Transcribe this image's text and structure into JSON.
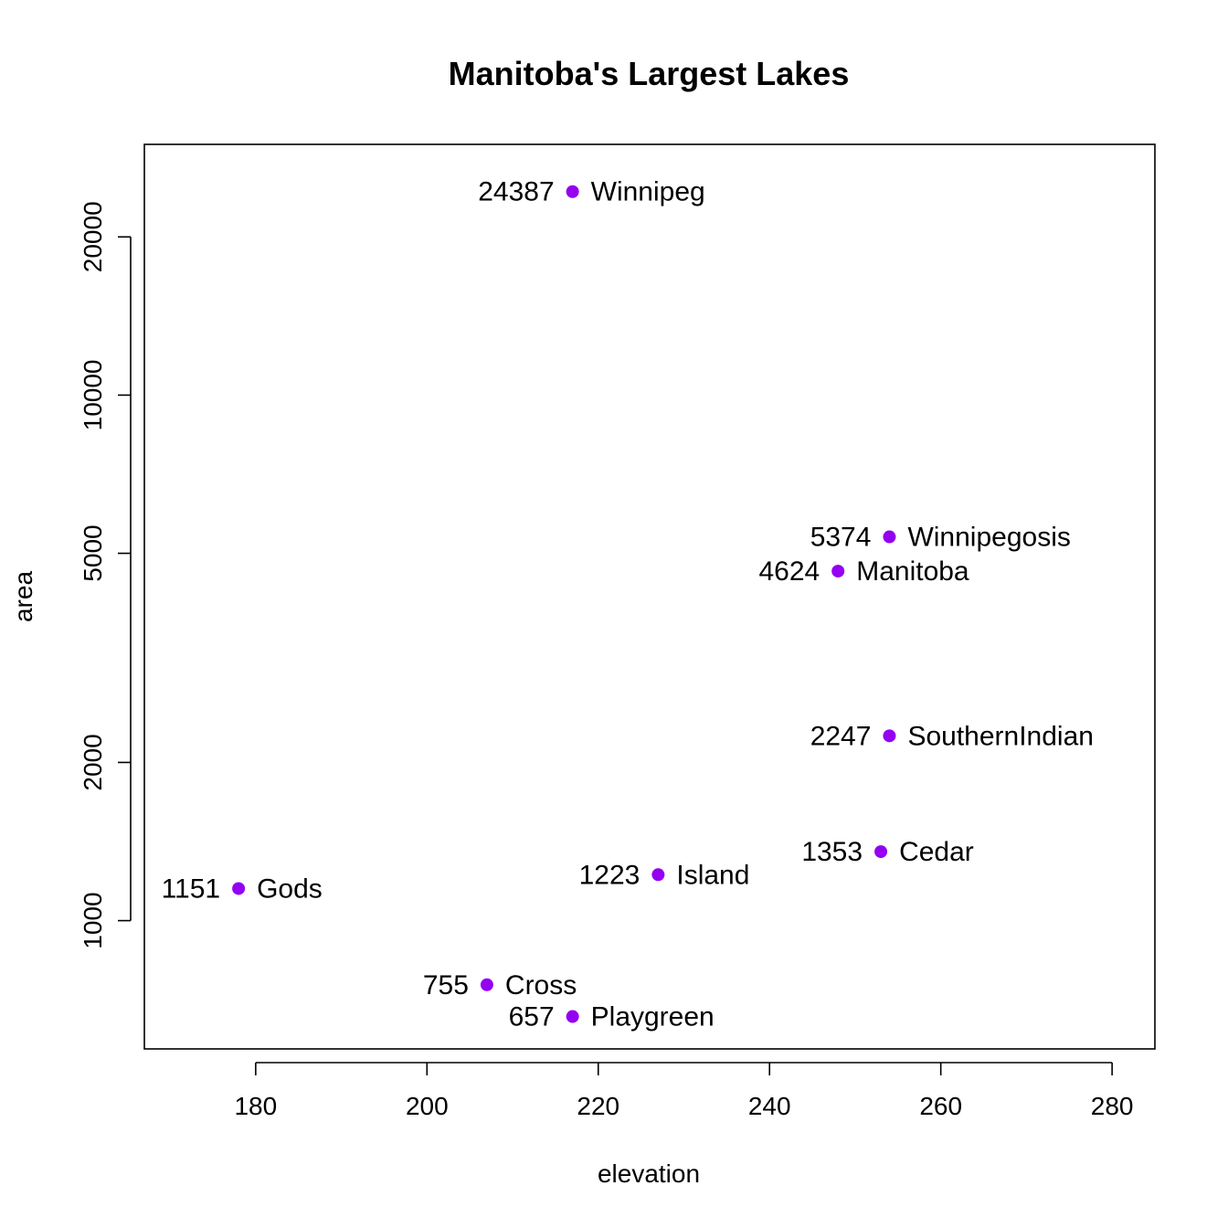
{
  "chart_data": {
    "type": "scatter",
    "title": "Manitoba's Largest Lakes",
    "xlabel": "elevation",
    "ylabel": "area",
    "xlim": [
      167,
      285
    ],
    "ylim": [
      570,
      30000
    ],
    "y_scale": "log",
    "grid": false,
    "legend": "none",
    "point_color": "#9400f0",
    "x_ticks": [
      180,
      200,
      220,
      240,
      260,
      280
    ],
    "y_ticks": [
      1000,
      2000,
      5000,
      10000,
      20000
    ],
    "points": [
      {
        "name": "Winnipeg",
        "x": 217,
        "y": 24387,
        "value_label": "24387"
      },
      {
        "name": "Winnipegosis",
        "x": 254,
        "y": 5374,
        "value_label": "5374"
      },
      {
        "name": "Manitoba",
        "x": 248,
        "y": 4624,
        "value_label": "4624"
      },
      {
        "name": "SouthernIndian",
        "x": 254,
        "y": 2247,
        "value_label": "2247"
      },
      {
        "name": "Cedar",
        "x": 253,
        "y": 1353,
        "value_label": "1353"
      },
      {
        "name": "Island",
        "x": 227,
        "y": 1223,
        "value_label": "1223"
      },
      {
        "name": "Gods",
        "x": 178,
        "y": 1151,
        "value_label": "1151"
      },
      {
        "name": "Cross",
        "x": 207,
        "y": 755,
        "value_label": "755"
      },
      {
        "name": "Playgreen",
        "x": 217,
        "y": 657,
        "value_label": "657"
      }
    ]
  }
}
